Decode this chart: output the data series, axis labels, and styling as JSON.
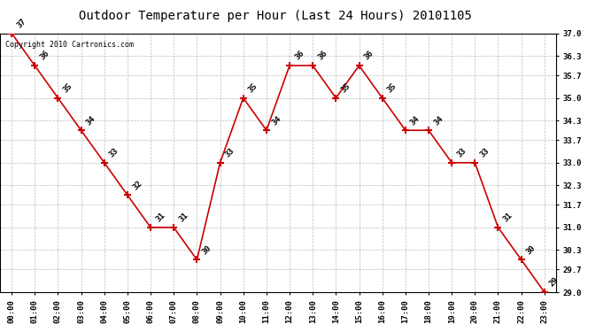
{
  "title": "Outdoor Temperature per Hour (Last 24 Hours) 20101105",
  "copyright": "Copyright 2010 Cartronics.com",
  "hours": [
    "00:00",
    "01:00",
    "02:00",
    "03:00",
    "04:00",
    "05:00",
    "06:00",
    "07:00",
    "08:00",
    "09:00",
    "10:00",
    "11:00",
    "12:00",
    "13:00",
    "14:00",
    "15:00",
    "16:00",
    "17:00",
    "18:00",
    "19:00",
    "20:00",
    "21:00",
    "22:00",
    "23:00"
  ],
  "values": [
    37,
    36,
    35,
    34,
    33,
    32,
    31,
    31,
    30,
    33,
    35,
    34,
    36,
    36,
    35,
    36,
    35,
    34,
    34,
    33,
    33,
    31,
    30,
    29
  ],
  "ylim_min": 29.0,
  "ylim_max": 37.0,
  "yticks": [
    29.0,
    29.7,
    30.3,
    31.0,
    31.7,
    32.3,
    33.0,
    33.7,
    34.3,
    35.0,
    35.7,
    36.3,
    37.0
  ],
  "ytick_labels": [
    "29.0",
    "29.7",
    "30.3",
    "31.0",
    "31.7",
    "32.3",
    "33.0",
    "33.7",
    "34.3",
    "35.0",
    "35.7",
    "36.3",
    "37.0"
  ],
  "line_color": "#cc0000",
  "marker_color": "#cc0000",
  "bg_color": "#ffffff",
  "grid_color": "#bbbbbb",
  "label_fontsize": 6.5,
  "title_fontsize": 10,
  "copyright_fontsize": 6,
  "tick_fontsize": 6.5
}
